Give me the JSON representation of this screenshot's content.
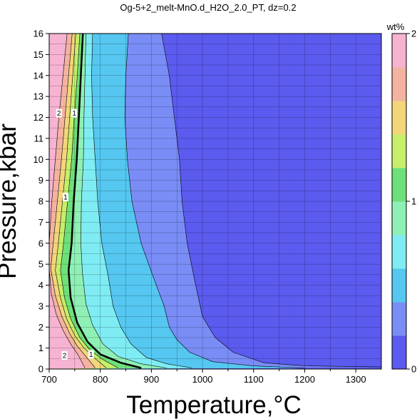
{
  "chart_data": {
    "type": "heatmap",
    "title": "Og-5+2_melt-MnO.d_H2O_2.0_PT, dz=0.2",
    "xlabel": "Temperature,°C",
    "ylabel": "Pressure,kbar",
    "xlim": [
      700,
      1350
    ],
    "ylim": [
      0,
      16
    ],
    "x_ticks": [
      "700",
      "800",
      "900",
      "1000",
      "1100",
      "1200",
      "1300"
    ],
    "y_ticks": [
      "0",
      "1",
      "2",
      "3",
      "4",
      "5",
      "6",
      "7",
      "8",
      "9",
      "10",
      "11",
      "12",
      "13",
      "14",
      "15",
      "16"
    ],
    "grid": true,
    "colorbar": {
      "label": "wt%",
      "range": [
        0,
        2
      ],
      "ticks": [
        "0",
        "1",
        "2"
      ],
      "colors": [
        "#5b5bef",
        "#7a8df6",
        "#55c7f0",
        "#7fecf3",
        "#8ff0b5",
        "#6ee07a",
        "#c6ef6a",
        "#f3d57a",
        "#f4b3a0",
        "#f6b3d2"
      ]
    },
    "regions": [
      {
        "level": 0.2,
        "color": "#7a8df6",
        "boundary": [
          [
            920,
            16
          ],
          [
            935,
            14
          ],
          [
            945,
            12
          ],
          [
            955,
            10
          ],
          [
            960,
            8
          ],
          [
            970,
            6
          ],
          [
            985,
            4.2
          ],
          [
            1000,
            2.5
          ],
          [
            1025,
            1.5
          ],
          [
            1060,
            0.8
          ],
          [
            1120,
            0.3
          ],
          [
            1200,
            0.15
          ],
          [
            1350,
            0.1
          ]
        ]
      },
      {
        "level": 0.4,
        "color": "#55c7f0",
        "boundary": [
          [
            855,
            16
          ],
          [
            850,
            14
          ],
          [
            848,
            12
          ],
          [
            853,
            10
          ],
          [
            862,
            8
          ],
          [
            880,
            6
          ],
          [
            905,
            4.3
          ],
          [
            925,
            3.0
          ],
          [
            935,
            2.0
          ],
          [
            950,
            1.4
          ],
          [
            975,
            0.8
          ],
          [
            1020,
            0.35
          ],
          [
            1100,
            0.15
          ],
          [
            1200,
            0.05
          ]
        ]
      },
      {
        "level": 0.6,
        "color": "#7fecf3",
        "boundary": [
          [
            785,
            16
          ],
          [
            783,
            14
          ],
          [
            785,
            12
          ],
          [
            790,
            10
          ],
          [
            795,
            8
          ],
          [
            803,
            6
          ],
          [
            815,
            4.5
          ],
          [
            825,
            3.0
          ],
          [
            840,
            2.0
          ],
          [
            860,
            1.2
          ],
          [
            890,
            0.55
          ],
          [
            930,
            0.25
          ],
          [
            980,
            0.05
          ]
        ]
      },
      {
        "level": 0.8,
        "color": "#8ff0b5",
        "boundary": [
          [
            772,
            16
          ],
          [
            770,
            14
          ],
          [
            768,
            12
          ],
          [
            767,
            10
          ],
          [
            763,
            8
          ],
          [
            762,
            6
          ],
          [
            765,
            4.6
          ],
          [
            772,
            3.1
          ],
          [
            785,
            2.1
          ],
          [
            805,
            1.2
          ],
          [
            835,
            0.6
          ],
          [
            880,
            0.25
          ],
          [
            930,
            0.05
          ]
        ]
      },
      {
        "level": 1.0,
        "color": "#6ee07a",
        "boundary": [
          [
            766,
            16
          ],
          [
            762,
            14
          ],
          [
            758,
            12
          ],
          [
            754,
            10
          ],
          [
            748,
            8
          ],
          [
            744,
            6
          ],
          [
            738,
            4.7
          ],
          [
            742,
            3.4
          ],
          [
            755,
            2.2
          ],
          [
            775,
            1.3
          ],
          [
            800,
            0.7
          ],
          [
            840,
            0.3
          ],
          [
            880,
            0.05
          ]
        ]
      },
      {
        "level": 1.2,
        "color": "#c6ef6a",
        "boundary": [
          [
            760,
            16
          ],
          [
            755,
            14
          ],
          [
            749,
            12
          ],
          [
            744,
            10
          ],
          [
            736,
            8
          ],
          [
            728,
            6
          ],
          [
            722,
            4.7
          ],
          [
            730,
            3.4
          ],
          [
            742,
            2.4
          ],
          [
            760,
            1.5
          ],
          [
            780,
            0.9
          ],
          [
            805,
            0.45
          ],
          [
            835,
            0.05
          ]
        ]
      },
      {
        "level": 1.4,
        "color": "#f3d57a",
        "boundary": [
          [
            752,
            16
          ],
          [
            746,
            14
          ],
          [
            740,
            12
          ],
          [
            734,
            10
          ],
          [
            726,
            8
          ],
          [
            718,
            6
          ],
          [
            712,
            4.7
          ],
          [
            722,
            3.4
          ],
          [
            734,
            2.4
          ],
          [
            750,
            1.6
          ],
          [
            768,
            1.0
          ],
          [
            790,
            0.5
          ],
          [
            812,
            0.05
          ]
        ]
      },
      {
        "level": 1.6,
        "color": "#f4b3a0",
        "boundary": [
          [
            745,
            16
          ],
          [
            738,
            14
          ],
          [
            731,
            12
          ],
          [
            724,
            10
          ],
          [
            716,
            8
          ],
          [
            708,
            6
          ],
          [
            703,
            4.8
          ],
          [
            712,
            3.5
          ],
          [
            725,
            2.5
          ],
          [
            740,
            1.7
          ],
          [
            755,
            1.1
          ],
          [
            772,
            0.6
          ],
          [
            790,
            0.05
          ]
        ]
      },
      {
        "level": 1.8,
        "color": "#f6b3d2",
        "boundary": [
          [
            735,
            16
          ],
          [
            727,
            14
          ],
          [
            719,
            12
          ],
          [
            712,
            10
          ],
          [
            705,
            8
          ],
          [
            700,
            6
          ],
          [
            700,
            4.8
          ],
          [
            704,
            3.6
          ],
          [
            714,
            2.6
          ],
          [
            728,
            1.8
          ],
          [
            742,
            1.2
          ],
          [
            756,
            0.7
          ],
          [
            770,
            0.05
          ]
        ]
      }
    ],
    "contour_labels": [
      {
        "text": "2",
        "x": 719,
        "y": 12.2
      },
      {
        "text": "1",
        "x": 749,
        "y": 12.2
      },
      {
        "text": "1",
        "x": 732,
        "y": 8.2
      },
      {
        "text": "2",
        "x": 730,
        "y": 0.65
      },
      {
        "text": "1",
        "x": 782,
        "y": 0.7
      }
    ]
  }
}
